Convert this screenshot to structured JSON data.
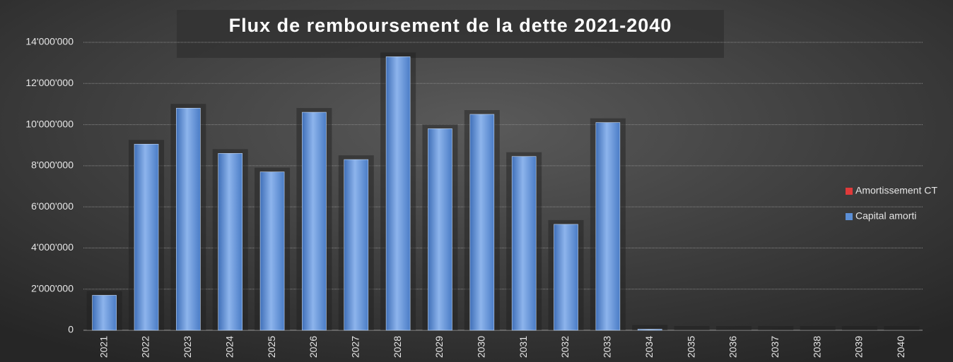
{
  "chart_data": {
    "type": "stacked_bar",
    "title": "Flux de remboursement de la dette 2021-2040",
    "categories": [
      "2021",
      "2022",
      "2023",
      "2024",
      "2025",
      "2026",
      "2027",
      "2028",
      "2029",
      "2030",
      "2031",
      "2032",
      "2033",
      "2034",
      "2035",
      "2036",
      "2037",
      "2038",
      "2039",
      "2040"
    ],
    "series": [
      {
        "name": "Amortissement CT",
        "color": "#e03a3a",
        "values": [
          0,
          0,
          0,
          0,
          0,
          0,
          0,
          0,
          0,
          0,
          0,
          0,
          0,
          0,
          0,
          0,
          0,
          0,
          0,
          0
        ]
      },
      {
        "name": "Capital amorti",
        "color": "#5b8fd6",
        "values": [
          1700000,
          9050000,
          10800000,
          8600000,
          7700000,
          10600000,
          8300000,
          13300000,
          9800000,
          10500000,
          8450000,
          5150000,
          10100000,
          50000,
          0,
          0,
          0,
          0,
          0,
          0
        ]
      }
    ],
    "ylim": [
      0,
      14000000
    ],
    "yticks": [
      0,
      {
        "value": 2000000,
        "label": "2'000'000"
      },
      {
        "value": 4000000,
        "label": "4'000'000"
      },
      {
        "value": 6000000,
        "label": "6'000'000"
      },
      {
        "value": 8000000,
        "label": "8'000'000"
      },
      {
        "value": 10000000,
        "label": "10'000'000"
      },
      {
        "value": 12000000,
        "label": "12'000'000"
      },
      {
        "value": 14000000,
        "label": "14'000'000"
      }
    ],
    "grid": true,
    "legend": "right"
  }
}
